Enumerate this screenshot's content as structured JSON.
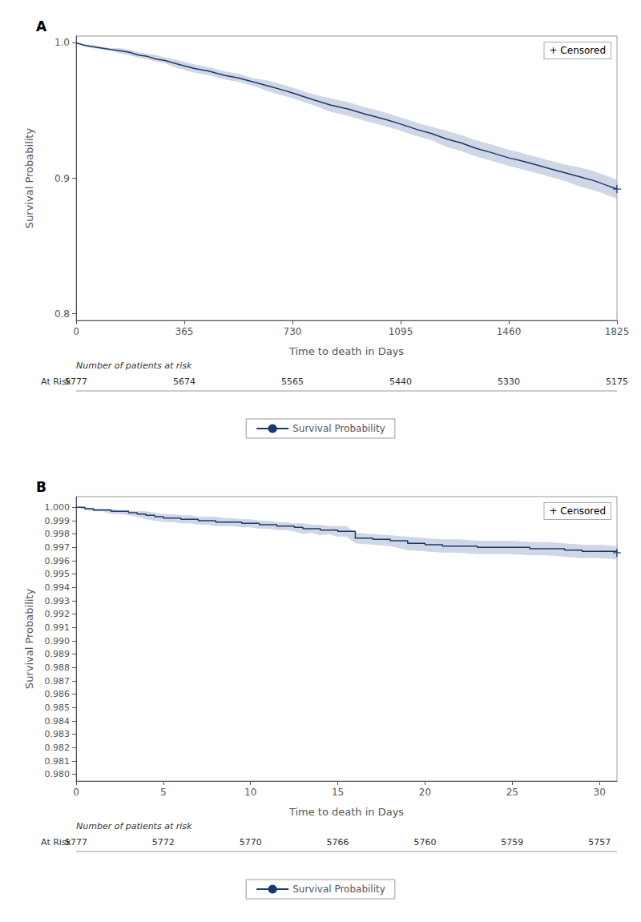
{
  "chart_data": [
    {
      "type": "line",
      "panel_label": "A",
      "x_label": "Time to death in Days",
      "y_label": "Survival Probability",
      "xlim": [
        0,
        1825
      ],
      "ylim": [
        0.795,
        1.005
      ],
      "xticks": [
        0,
        365,
        730,
        1095,
        1460,
        1825
      ],
      "yticks": [
        0.8,
        0.9,
        {
          "value": 1.0,
          "label": "1.0"
        }
      ],
      "grid": false,
      "legend": "bottom",
      "x": [
        0,
        30,
        60,
        90,
        120,
        150,
        180,
        210,
        240,
        270,
        300,
        330,
        365,
        400,
        450,
        500,
        550,
        600,
        650,
        700,
        730,
        800,
        860,
        920,
        980,
        1000,
        1050,
        1095,
        1150,
        1200,
        1250,
        1300,
        1350,
        1400,
        1460,
        1500,
        1550,
        1600,
        1650,
        1700,
        1750,
        1800,
        1825
      ],
      "series": [
        {
          "name": "Survival Probability",
          "color": "#1a3a6b",
          "ci_color": "#a8b4d0",
          "values": [
            1.0,
            0.998,
            0.997,
            0.996,
            0.995,
            0.994,
            0.993,
            0.991,
            0.99,
            0.988,
            0.987,
            0.985,
            0.983,
            0.981,
            0.979,
            0.976,
            0.974,
            0.971,
            0.968,
            0.965,
            0.963,
            0.958,
            0.954,
            0.951,
            0.947,
            0.946,
            0.943,
            0.94,
            0.936,
            0.933,
            0.929,
            0.926,
            0.922,
            0.919,
            0.915,
            0.913,
            0.91,
            0.907,
            0.904,
            0.901,
            0.898,
            0.894,
            0.892
          ],
          "ci_upper": [
            1.0,
            0.999,
            0.998,
            0.997,
            0.996,
            0.996,
            0.995,
            0.993,
            0.992,
            0.991,
            0.989,
            0.988,
            0.986,
            0.984,
            0.982,
            0.979,
            0.977,
            0.974,
            0.972,
            0.969,
            0.967,
            0.962,
            0.959,
            0.956,
            0.952,
            0.951,
            0.948,
            0.945,
            0.941,
            0.938,
            0.935,
            0.932,
            0.928,
            0.925,
            0.921,
            0.919,
            0.916,
            0.913,
            0.91,
            0.908,
            0.905,
            0.901,
            0.899
          ],
          "ci_lower": [
            1.0,
            0.997,
            0.996,
            0.995,
            0.994,
            0.992,
            0.991,
            0.989,
            0.988,
            0.986,
            0.985,
            0.982,
            0.98,
            0.978,
            0.976,
            0.973,
            0.971,
            0.968,
            0.964,
            0.961,
            0.959,
            0.954,
            0.949,
            0.946,
            0.942,
            0.941,
            0.938,
            0.935,
            0.931,
            0.928,
            0.923,
            0.92,
            0.916,
            0.913,
            0.909,
            0.907,
            0.904,
            0.901,
            0.898,
            0.894,
            0.891,
            0.887,
            0.885
          ]
        }
      ],
      "censored": {
        "x": [
          1825
        ],
        "values": [
          0.892
        ],
        "marker": "plus",
        "color": "#1a3a6b"
      },
      "annotation": "+ Censored",
      "at_risk": {
        "title": "Number of patients at risk",
        "label": "At Risk",
        "x": [
          0,
          365,
          730,
          1095,
          1460,
          1825
        ],
        "values": [
          5777,
          5674,
          5565,
          5440,
          5330,
          5175
        ]
      }
    },
    {
      "type": "step",
      "panel_label": "B",
      "x_label": "Time to death in Days",
      "y_label": "Survival Probability",
      "xlim": [
        0,
        31
      ],
      "ylim": [
        0.9795,
        1.0008
      ],
      "xticks": [
        0,
        5,
        10,
        15,
        20,
        25,
        30
      ],
      "yticks": [
        {
          "value": 0.98,
          "label": "0.980"
        },
        0.981,
        0.982,
        0.983,
        0.984,
        0.985,
        0.986,
        0.987,
        0.988,
        0.989,
        {
          "value": 0.99,
          "label": "0.990"
        },
        0.991,
        0.992,
        0.993,
        0.994,
        0.995,
        0.996,
        0.997,
        0.998,
        0.999,
        {
          "value": 1.0,
          "label": "1.000"
        }
      ],
      "grid": false,
      "legend": "bottom",
      "x": [
        0,
        0.5,
        1,
        1.5,
        2,
        2.5,
        3,
        3.5,
        4,
        4.5,
        5,
        5.5,
        6,
        6.5,
        7,
        7.5,
        8,
        8.5,
        9,
        9.5,
        10,
        10.5,
        11,
        11.5,
        12,
        12.5,
        13,
        13.5,
        14,
        14.5,
        15,
        15.5,
        16,
        17,
        18,
        19,
        20,
        21,
        22,
        23,
        24,
        25,
        26,
        27,
        28,
        29,
        30,
        31
      ],
      "series": [
        {
          "name": "Survival Probability",
          "color": "#1a3a6b",
          "ci_color": "#a8b4d0",
          "values": [
            1.0,
            0.9999,
            0.9998,
            0.9998,
            0.9997,
            0.9997,
            0.9996,
            0.9995,
            0.9994,
            0.9993,
            0.9992,
            0.9992,
            0.9991,
            0.9991,
            0.999,
            0.999,
            0.9989,
            0.9989,
            0.9989,
            0.9988,
            0.9988,
            0.9987,
            0.9987,
            0.9986,
            0.9986,
            0.9985,
            0.9984,
            0.9984,
            0.9983,
            0.9983,
            0.9982,
            0.9982,
            0.9977,
            0.9976,
            0.9975,
            0.9973,
            0.9972,
            0.9971,
            0.9971,
            0.997,
            0.997,
            0.997,
            0.9969,
            0.9969,
            0.9968,
            0.9967,
            0.9967,
            0.9966
          ],
          "ci_upper": [
            1.0,
            1.0,
            0.9999,
            0.9999,
            0.9999,
            0.9998,
            0.9998,
            0.9997,
            0.9997,
            0.9996,
            0.9995,
            0.9995,
            0.9994,
            0.9994,
            0.9993,
            0.9993,
            0.9993,
            0.9992,
            0.9992,
            0.9991,
            0.9991,
            0.999,
            0.999,
            0.9989,
            0.9989,
            0.9988,
            0.9988,
            0.9987,
            0.9987,
            0.9986,
            0.9986,
            0.9986,
            0.9981,
            0.998,
            0.9979,
            0.9978,
            0.9977,
            0.9976,
            0.9976,
            0.9975,
            0.9975,
            0.9975,
            0.9974,
            0.9974,
            0.9973,
            0.9972,
            0.9972,
            0.9971
          ],
          "ci_lower": [
            1.0,
            0.9998,
            0.9997,
            0.9997,
            0.9995,
            0.9995,
            0.9994,
            0.9993,
            0.9991,
            0.999,
            0.9989,
            0.9989,
            0.9988,
            0.9988,
            0.9987,
            0.9987,
            0.9986,
            0.9986,
            0.9986,
            0.9985,
            0.9985,
            0.9984,
            0.9984,
            0.9983,
            0.9983,
            0.9982,
            0.998,
            0.9981,
            0.9979,
            0.998,
            0.9978,
            0.9978,
            0.9973,
            0.9972,
            0.9971,
            0.9968,
            0.9967,
            0.9966,
            0.9966,
            0.9965,
            0.9965,
            0.9965,
            0.9964,
            0.9964,
            0.9963,
            0.9962,
            0.9962,
            0.9961
          ]
        }
      ],
      "censored": {
        "x": [
          31
        ],
        "values": [
          0.9966
        ],
        "marker": "plus",
        "color": "#1a3a6b"
      },
      "annotation": "+ Censored",
      "at_risk": {
        "title": "Number of patients at risk",
        "label": "At Risk",
        "x": [
          0,
          5,
          10,
          15,
          20,
          25,
          30
        ],
        "values": [
          5777,
          5772,
          5770,
          5766,
          5760,
          5759,
          5757
        ]
      }
    }
  ]
}
